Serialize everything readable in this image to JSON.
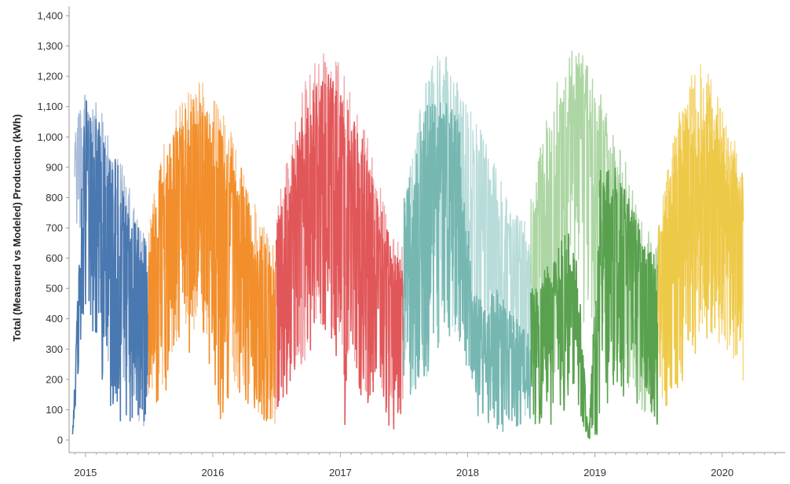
{
  "chart_data": {
    "type": "line",
    "title": "",
    "xlabel": "",
    "ylabel": "Total (Measured vs Modeled) Production (kWh)",
    "ylim": [
      0,
      1400
    ],
    "xlim": [
      "2014-11-15",
      "2020-06-30"
    ],
    "y_ticks": [
      0,
      100,
      200,
      300,
      400,
      500,
      600,
      700,
      800,
      900,
      1000,
      1100,
      1200,
      1300,
      1400
    ],
    "y_tick_labels": [
      "0",
      "100",
      "200",
      "300",
      "400",
      "500",
      "600",
      "700",
      "800",
      "900",
      "1,000",
      "1,100",
      "1,200",
      "1,300",
      "1,400"
    ],
    "x_tick_labels": [
      "2015",
      "2016",
      "2017",
      "2018",
      "2019",
      "2020"
    ],
    "x_tick_dates": [
      "2015-01-01",
      "2016-01-01",
      "2017-01-01",
      "2018-01-01",
      "2019-01-01",
      "2020-01-01"
    ],
    "grid": false,
    "legend": "none",
    "series": [
      {
        "kind": "modeled",
        "color": "#a9bcd9",
        "start": "2014-12-01",
        "end": "2015-06-30",
        "monthly_max": [
          1100,
          1150,
          1100,
          1000,
          900,
          750,
          650
        ],
        "monthly_min": [
          700,
          650,
          400,
          200,
          100,
          50,
          20
        ]
      },
      {
        "kind": "measured",
        "color": "#4a78b0",
        "start": "2014-11-25",
        "end": "2015-06-30",
        "monthly_max": [
          20,
          1150,
          1080,
          1000,
          850,
          720,
          650
        ],
        "monthly_min": [
          10,
          450,
          250,
          100,
          50,
          30,
          20
        ]
      },
      {
        "kind": "modeled",
        "color": "#f8c48f",
        "start": "2015-07-01",
        "end": "2016-06-30",
        "monthly_max": [
          700,
          950,
          1050,
          1150,
          1200,
          1180,
          1100,
          1050,
          950,
          800,
          700,
          650
        ],
        "monthly_min": [
          100,
          150,
          200,
          300,
          350,
          350,
          300,
          200,
          150,
          100,
          80,
          50
        ]
      },
      {
        "kind": "measured",
        "color": "#f28e2b",
        "start": "2015-07-01",
        "end": "2016-06-30",
        "monthly_max": [
          650,
          900,
          1000,
          1100,
          1150,
          1120,
          1050,
          1000,
          900,
          750,
          650,
          600
        ],
        "monthly_min": [
          100,
          100,
          180,
          250,
          300,
          300,
          5,
          150,
          100,
          80,
          60,
          40
        ]
      },
      {
        "kind": "modeled",
        "color": "#f2a7ab",
        "start": "2016-07-01",
        "end": "2017-06-30",
        "monthly_max": [
          750,
          1000,
          1150,
          1250,
          1300,
          1350,
          1250,
          1100,
          1000,
          850,
          700,
          650
        ],
        "monthly_min": [
          100,
          150,
          200,
          300,
          350,
          350,
          300,
          200,
          150,
          100,
          80,
          50
        ]
      },
      {
        "kind": "measured",
        "color": "#e15759",
        "start": "2016-07-01",
        "end": "2017-06-30",
        "monthly_max": [
          700,
          900,
          1050,
          1150,
          1200,
          1230,
          1100,
          1050,
          950,
          800,
          650,
          600
        ],
        "monthly_min": [
          100,
          100,
          180,
          250,
          300,
          300,
          20,
          150,
          100,
          80,
          30,
          20
        ]
      },
      {
        "kind": "modeled",
        "color": "#b8dcd9",
        "start": "2017-07-01",
        "end": "2018-06-30",
        "monthly_max": [
          850,
          1000,
          1200,
          1330,
          1250,
          1150,
          1100,
          1000,
          900,
          800,
          750,
          700
        ],
        "monthly_min": [
          150,
          150,
          200,
          300,
          350,
          350,
          300,
          200,
          150,
          100,
          80,
          50
        ]
      },
      {
        "kind": "measured",
        "color": "#76b7b2",
        "start": "2017-07-01",
        "end": "2018-06-30",
        "monthly_max": [
          800,
          950,
          1100,
          1150,
          1100,
          1050,
          500,
          450,
          500,
          450,
          400,
          350
        ],
        "monthly_min": [
          150,
          150,
          200,
          300,
          300,
          300,
          100,
          50,
          30,
          5,
          50,
          50
        ]
      },
      {
        "kind": "modeled",
        "color": "#add6a4",
        "start": "2018-07-01",
        "end": "2019-06-30",
        "monthly_max": [
          800,
          1000,
          1150,
          1250,
          1310,
          1250,
          1150,
          1050,
          950,
          800,
          700,
          650
        ],
        "monthly_min": [
          150,
          150,
          200,
          300,
          350,
          350,
          300,
          200,
          150,
          100,
          80,
          50
        ]
      },
      {
        "kind": "measured",
        "color": "#59a14f",
        "start": "2018-07-01",
        "end": "2019-06-30",
        "monthly_max": [
          500,
          550,
          600,
          700,
          650,
          0,
          900,
          950,
          850,
          750,
          650,
          620
        ],
        "monthly_min": [
          50,
          50,
          50,
          100,
          100,
          0,
          20,
          150,
          100,
          80,
          60,
          50
        ]
      },
      {
        "kind": "modeled",
        "color": "#f6d77a",
        "start": "2019-07-01",
        "end": "2020-03-01",
        "monthly_max": [
          750,
          950,
          1100,
          1200,
          1270,
          1200,
          1100,
          1000,
          950
        ],
        "monthly_min": [
          100,
          150,
          200,
          300,
          350,
          350,
          300,
          200,
          150
        ]
      },
      {
        "kind": "measured",
        "color": "#edc948",
        "start": "2019-07-01",
        "end": "2020-03-01",
        "monthly_max": [
          700,
          900,
          1050,
          1100,
          1150,
          1130,
          1050,
          950,
          900
        ],
        "monthly_min": [
          100,
          100,
          150,
          250,
          300,
          300,
          350,
          350,
          0
        ]
      }
    ]
  }
}
